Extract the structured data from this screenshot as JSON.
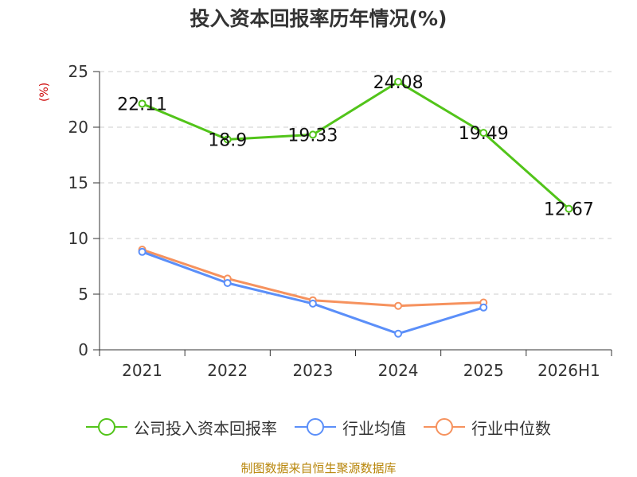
{
  "chart_data": {
    "type": "line",
    "title": "投入资本回报率历年情况(%)",
    "ylabel": "(%)",
    "categories": [
      "2021",
      "2022",
      "2023",
      "2024",
      "2025",
      "2026H1"
    ],
    "ylim": [
      0,
      25
    ],
    "yticks": [
      "0",
      "5",
      "10",
      "15",
      "20",
      "25"
    ],
    "grid": true,
    "legend_position": "bottom",
    "series": [
      {
        "name": "公司投入资本回报率",
        "color": "#52c41a",
        "values": [
          22.11,
          18.9,
          19.33,
          24.08,
          19.49,
          12.67
        ],
        "labels": [
          "22.11",
          "18.9",
          "19.33",
          "24.08",
          "19.49",
          "12.67"
        ]
      },
      {
        "name": "行业均值",
        "color": "#5b8ff9",
        "values": [
          8.8,
          6.0,
          4.15,
          1.45,
          3.8,
          null
        ],
        "labels": []
      },
      {
        "name": "行业中位数",
        "color": "#f6925e",
        "values": [
          9.0,
          6.4,
          4.45,
          3.95,
          4.25,
          null
        ],
        "labels": []
      }
    ]
  },
  "ylabel_color": "#cc0000",
  "source": "制图数据来自恒生聚源数据库"
}
